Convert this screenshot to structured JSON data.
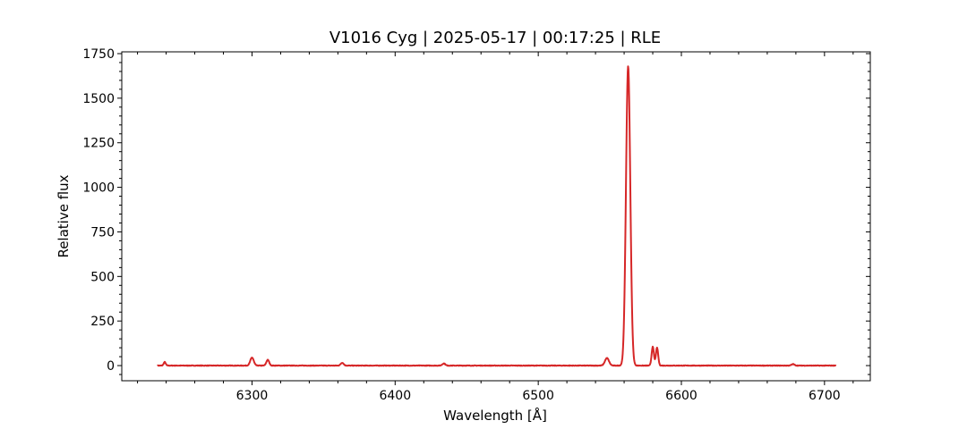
{
  "chart_data": {
    "type": "line",
    "title": "V1016 Cyg | 2025-05-17 | 00:17:25 | RLE",
    "xlabel": "Wavelength [Å]",
    "ylabel": "Relative flux",
    "xlim": [
      6209,
      6732
    ],
    "ylim": [
      -85,
      1760
    ],
    "x_ticks": [
      6300,
      6400,
      6500,
      6600,
      6700
    ],
    "y_ticks": [
      0,
      250,
      500,
      750,
      1000,
      1250,
      1500,
      1750
    ],
    "x_minor_step": 20,
    "y_minor_step": 50,
    "grid": false,
    "legend": "none",
    "series": [
      {
        "color": "#d62728",
        "x_range": [
          6234,
          6708
        ],
        "baseline": 0,
        "lines": [
          {
            "center": 6239,
            "peak": 20,
            "width": 0.7
          },
          {
            "center": 6300,
            "peak": 45,
            "width": 1.2
          },
          {
            "center": 6311,
            "peak": 32,
            "width": 1.0
          },
          {
            "center": 6363,
            "peak": 16,
            "width": 1.0
          },
          {
            "center": 6434,
            "peak": 12,
            "width": 1.0
          },
          {
            "center": 6548,
            "peak": 42,
            "width": 1.4
          },
          {
            "center": 6562.8,
            "peak": 1680,
            "width": 1.5
          },
          {
            "center": 6580,
            "peak": 105,
            "width": 0.8
          },
          {
            "center": 6583,
            "peak": 100,
            "width": 0.8
          },
          {
            "center": 6678,
            "peak": 8,
            "width": 1.0
          }
        ]
      }
    ]
  }
}
